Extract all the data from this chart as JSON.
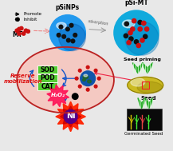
{
  "bg_color": "#e8e8e8",
  "pSINPs_label": "pSiNPs",
  "pSiMT_label": "pSi-MT",
  "adsorption_label": "adsorption",
  "MT_label": "MT",
  "seed_priming_label": "Seed priming",
  "seed_label": "Seed",
  "germinated_label": "Germinated Seed",
  "promote_label": "Promote",
  "inhibit_label": "Inhibit",
  "sod_label": "SOD",
  "pod_label": "POD",
  "cat_label": "CAT",
  "reserve_label": "Reserve\nmobilization",
  "h2o_label": "H₂O₂",
  "ni_label": "Ni",
  "sphere1_color": "#2299ee",
  "sphere2_color": "#11aadd",
  "sphere1_dark": "#0055aa",
  "sphere2_dark": "#0077bb",
  "dot_black": "#111111",
  "dot_red": "#cc1111",
  "cell_bg": "#f5c8c0",
  "cell_border": "#bb2222",
  "sod_bg": "#55cc33",
  "enzyme_text": "#000000",
  "reserve_text": "#dd1111",
  "h2o_burst": "#ff1155",
  "ni_burst_outer": "#ff2200",
  "ni_burst_inner": "#cc0000",
  "ni_center": "#550088",
  "arrow_blue": "#1155cc",
  "arrow_green": "#22aa22",
  "seed_color": "#ccbb22",
  "seed_dark": "#887700",
  "globe_color": "#1155aa",
  "globe_land": "#226622"
}
